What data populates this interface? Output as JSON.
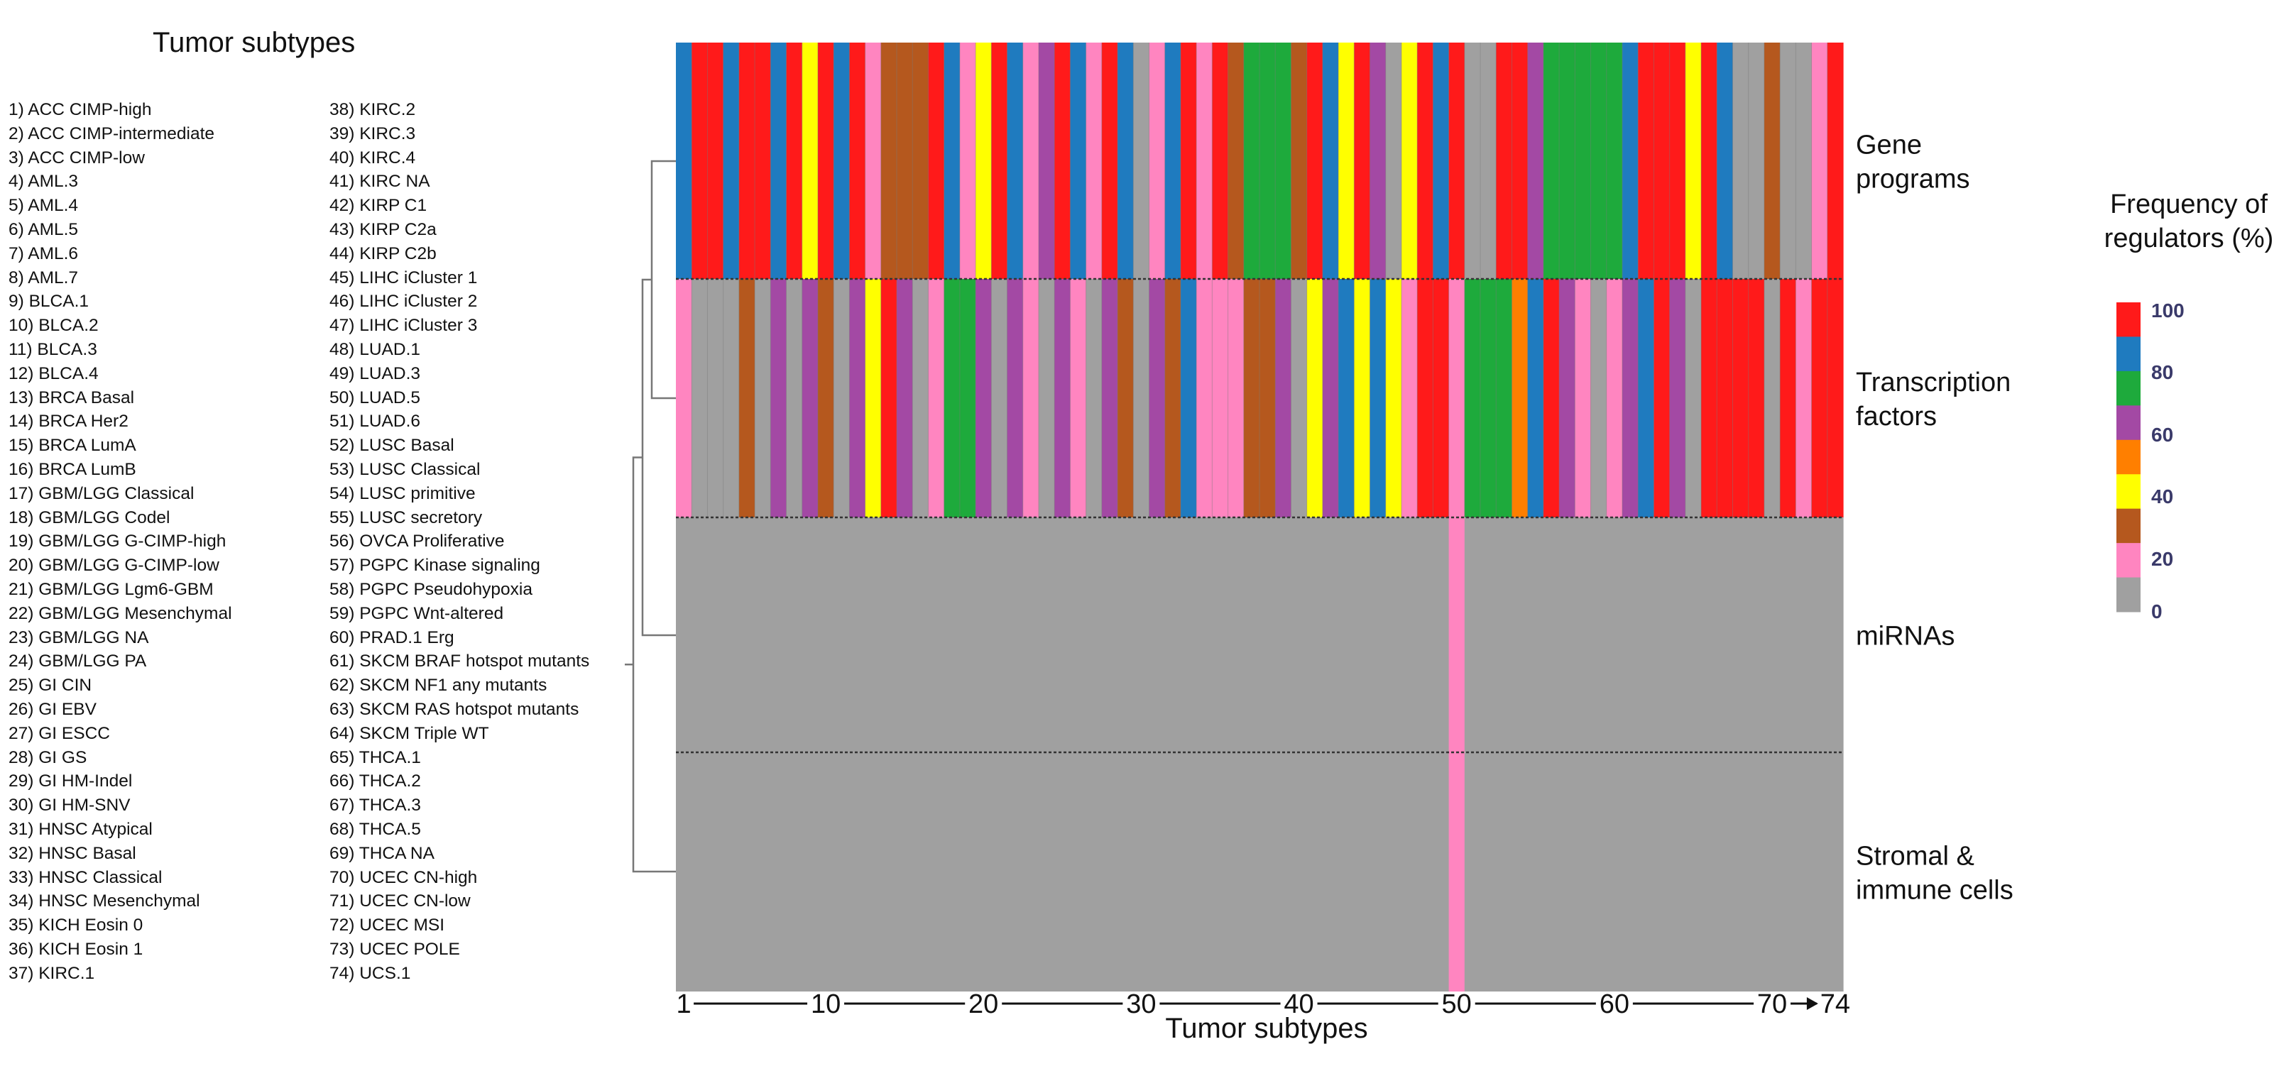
{
  "subtype_list": {
    "title": "Tumor subtypes",
    "items": [
      "1) ACC CIMP-high",
      "2) ACC CIMP-intermediate",
      "3) ACC CIMP-low",
      "4) AML.3",
      "5) AML.4",
      "6) AML.5",
      "7) AML.6",
      "8) AML.7",
      "9) BLCA.1",
      "10) BLCA.2",
      "11) BLCA.3",
      "12) BLCA.4",
      "13) BRCA Basal",
      "14) BRCA Her2",
      "15) BRCA LumA",
      "16) BRCA LumB",
      "17) GBM/LGG Classical",
      "18) GBM/LGG Codel",
      "19) GBM/LGG G-CIMP-high",
      "20) GBM/LGG G-CIMP-low",
      "21) GBM/LGG Lgm6-GBM",
      "22) GBM/LGG Mesenchymal",
      "23) GBM/LGG NA",
      "24) GBM/LGG PA",
      "25) GI CIN",
      "26) GI EBV",
      "27) GI ESCC",
      "28) GI GS",
      "29) GI HM-Indel",
      "30) GI HM-SNV",
      "31) HNSC Atypical",
      "32) HNSC Basal",
      "33) HNSC Classical",
      "34) HNSC Mesenchymal",
      "35) KICH Eosin 0",
      "36) KICH Eosin 1",
      "37) KIRC.1",
      "38) KIRC.2",
      "39) KIRC.3",
      "40) KIRC.4",
      "41) KIRC NA",
      "42) KIRP C1",
      "43) KIRP C2a",
      "44) KIRP C2b",
      "45) LIHC iCluster 1",
      "46) LIHC iCluster 2",
      "47) LIHC iCluster 3",
      "48) LUAD.1",
      "49) LUAD.3",
      "50) LUAD.5",
      "51) LUAD.6",
      "52) LUSC Basal",
      "53) LUSC Classical",
      "54) LUSC primitive",
      "55) LUSC secretory",
      "56) OVCA Proliferative",
      "57) PGPC Kinase signaling",
      "58) PGPC Pseudohypoxia",
      "59) PGPC Wnt-altered",
      "60) PRAD.1 Erg",
      "61) SKCM BRAF hotspot mutants",
      "62) SKCM NF1 any mutants",
      "63) SKCM RAS hotspot mutants",
      "64) SKCM Triple WT",
      "65) THCA.1",
      "66) THCA.2",
      "67) THCA.3",
      "68) THCA.5",
      "69) THCA NA",
      "70) UCEC CN-high",
      "71) UCEC CN-low",
      "72) UCEC MSI",
      "73) UCEC POLE",
      "74) UCS.1"
    ]
  },
  "chart_data": {
    "type": "heatmap",
    "xlabel": "Tumor subtypes",
    "x_ticks": [
      1,
      10,
      20,
      30,
      40,
      50,
      60,
      70,
      74
    ],
    "x_range": [
      1,
      74
    ],
    "rows": [
      {
        "label_lines": [
          "Gene",
          "programs"
        ],
        "values": [
          80,
          100,
          100,
          80,
          100,
          100,
          80,
          100,
          40,
          100,
          80,
          100,
          20,
          30,
          30,
          30,
          100,
          80,
          20,
          40,
          100,
          80,
          20,
          60,
          100,
          80,
          20,
          100,
          80,
          0,
          20,
          80,
          100,
          20,
          100,
          30,
          70,
          70,
          70,
          30,
          100,
          80,
          40,
          100,
          60,
          0,
          40,
          100,
          80,
          100,
          0,
          0,
          100,
          100,
          60,
          70,
          70,
          70,
          70,
          70,
          80,
          100,
          100,
          100,
          40,
          100,
          80,
          0,
          0,
          30,
          0,
          0,
          20,
          100
        ]
      },
      {
        "label_lines": [
          "Transcription",
          "factors"
        ],
        "values": [
          20,
          0,
          0,
          0,
          30,
          0,
          60,
          0,
          60,
          30,
          0,
          60,
          40,
          100,
          60,
          0,
          20,
          70,
          70,
          60,
          0,
          60,
          20,
          0,
          60,
          20,
          0,
          60,
          30,
          0,
          60,
          30,
          80,
          20,
          20,
          20,
          30,
          30,
          60,
          0,
          40,
          60,
          80,
          40,
          80,
          40,
          20,
          100,
          100,
          20,
          70,
          70,
          70,
          50,
          80,
          100,
          60,
          20,
          0,
          20,
          60,
          80,
          100,
          60,
          0,
          100,
          100,
          100,
          100,
          0,
          100,
          20,
          100,
          100
        ]
      },
      {
        "label_lines": [
          "miRNAs"
        ],
        "values": [
          0,
          0,
          0,
          0,
          0,
          0,
          0,
          0,
          0,
          0,
          0,
          0,
          0,
          0,
          0,
          0,
          0,
          0,
          0,
          0,
          0,
          0,
          0,
          0,
          0,
          0,
          0,
          0,
          0,
          0,
          0,
          0,
          0,
          0,
          0,
          0,
          0,
          0,
          0,
          0,
          0,
          0,
          0,
          0,
          0,
          0,
          0,
          0,
          0,
          20,
          0,
          0,
          0,
          0,
          0,
          0,
          0,
          0,
          0,
          0,
          0,
          0,
          0,
          0,
          0,
          0,
          0,
          0,
          0,
          0,
          0,
          0,
          0,
          0
        ]
      },
      {
        "label_lines": [
          "Stromal &",
          "immune cells"
        ],
        "values": [
          0,
          0,
          0,
          0,
          0,
          0,
          0,
          0,
          0,
          0,
          0,
          0,
          0,
          0,
          0,
          0,
          0,
          0,
          0,
          0,
          0,
          0,
          0,
          0,
          0,
          0,
          0,
          0,
          0,
          0,
          0,
          0,
          0,
          0,
          0,
          0,
          0,
          0,
          0,
          0,
          0,
          0,
          0,
          0,
          0,
          0,
          0,
          0,
          0,
          20,
          0,
          0,
          0,
          0,
          0,
          0,
          0,
          0,
          0,
          0,
          0,
          0,
          0,
          0,
          0,
          0,
          0,
          0,
          0,
          0,
          0,
          0,
          0,
          0
        ]
      }
    ],
    "color_scale": {
      "title_lines": [
        "Frequency of",
        "regulators (%)"
      ],
      "ticks": [
        "100",
        "80",
        "60",
        "40",
        "20",
        "0"
      ],
      "bins": [
        {
          "value": 100,
          "color": "#ff1a1a"
        },
        {
          "value": 80,
          "color": "#1f7bbf"
        },
        {
          "value": 70,
          "color": "#1eaa3c"
        },
        {
          "value": 60,
          "color": "#a349a4"
        },
        {
          "value": 50,
          "color": "#ff7f00"
        },
        {
          "value": 40,
          "color": "#ffff00"
        },
        {
          "value": 30,
          "color": "#b5581e"
        },
        {
          "value": 20,
          "color": "#ff85c0"
        },
        {
          "value": 0,
          "color": "#a0a0a0"
        }
      ]
    },
    "dendrogram": "rows clustered: (Gene programs, Transcription factors) joined, then with miRNAs, then with Stromal & immune cells"
  }
}
